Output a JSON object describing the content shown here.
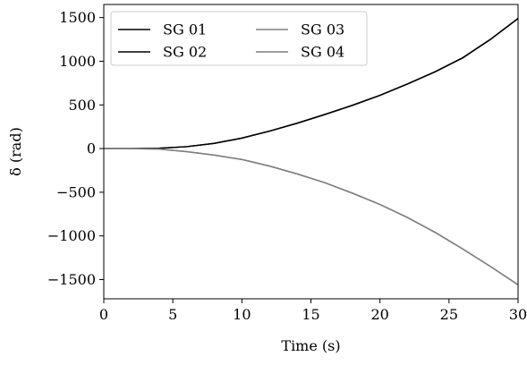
{
  "chart_data": {
    "type": "line",
    "xlabel": "Time (s)",
    "ylabel": "δ (rad)",
    "xlim": [
      0,
      30
    ],
    "ylim": [
      -1720,
      1650
    ],
    "x_ticks": [
      0,
      5,
      10,
      15,
      20,
      25,
      30
    ],
    "y_ticks": [
      -1500,
      -1000,
      -500,
      0,
      500,
      1000,
      1500
    ],
    "y_tick_labels": [
      "−1500",
      "−1000",
      "−500",
      "0",
      "500",
      "1000",
      "1500"
    ],
    "grid": false,
    "legend_position": "top-left",
    "x": [
      0,
      2,
      4,
      6,
      8,
      10,
      12,
      14,
      16,
      18,
      20,
      22,
      24,
      26,
      28,
      30
    ],
    "series": [
      {
        "name": "SG 01",
        "color": "#000000",
        "values": [
          0,
          0,
          3,
          22,
          60,
          120,
          200,
          290,
          390,
          495,
          610,
          740,
          880,
          1040,
          1250,
          1490
        ]
      },
      {
        "name": "SG 02",
        "color": "#000000",
        "values": [
          0,
          0,
          3,
          22,
          60,
          120,
          200,
          290,
          390,
          495,
          610,
          740,
          880,
          1040,
          1250,
          1490
        ]
      },
      {
        "name": "SG 03",
        "color": "#7f7f7f",
        "values": [
          0,
          0,
          -5,
          -35,
          -75,
          -125,
          -200,
          -290,
          -390,
          -510,
          -640,
          -790,
          -960,
          -1150,
          -1350,
          -1560
        ]
      },
      {
        "name": "SG 04",
        "color": "#7f7f7f",
        "values": [
          0,
          0,
          -5,
          -35,
          -75,
          -125,
          -200,
          -290,
          -390,
          -510,
          -640,
          -790,
          -960,
          -1150,
          -1350,
          -1560
        ]
      }
    ]
  }
}
